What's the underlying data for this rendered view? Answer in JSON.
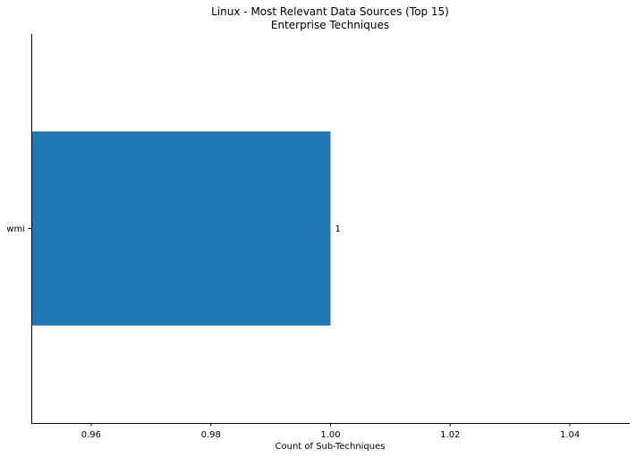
{
  "chart_data": {
    "type": "bar",
    "orientation": "horizontal",
    "title": "Linux - Most Relevant Data Sources (Top 15)",
    "subtitle": "Enterprise Techniques",
    "xlabel": "Count of Sub-Techniques",
    "ylabel": "",
    "categories": [
      "wmi"
    ],
    "values": [
      1
    ],
    "data_labels": [
      "1"
    ],
    "xlim": [
      0.95,
      1.05
    ],
    "xticks": [
      0.96,
      0.98,
      1.0,
      1.02,
      1.04
    ],
    "xtick_labels": [
      "0.96",
      "0.98",
      "1.00",
      "1.02",
      "1.04"
    ],
    "bar_color": "#1f77b4",
    "grid": false,
    "legend": "none"
  }
}
